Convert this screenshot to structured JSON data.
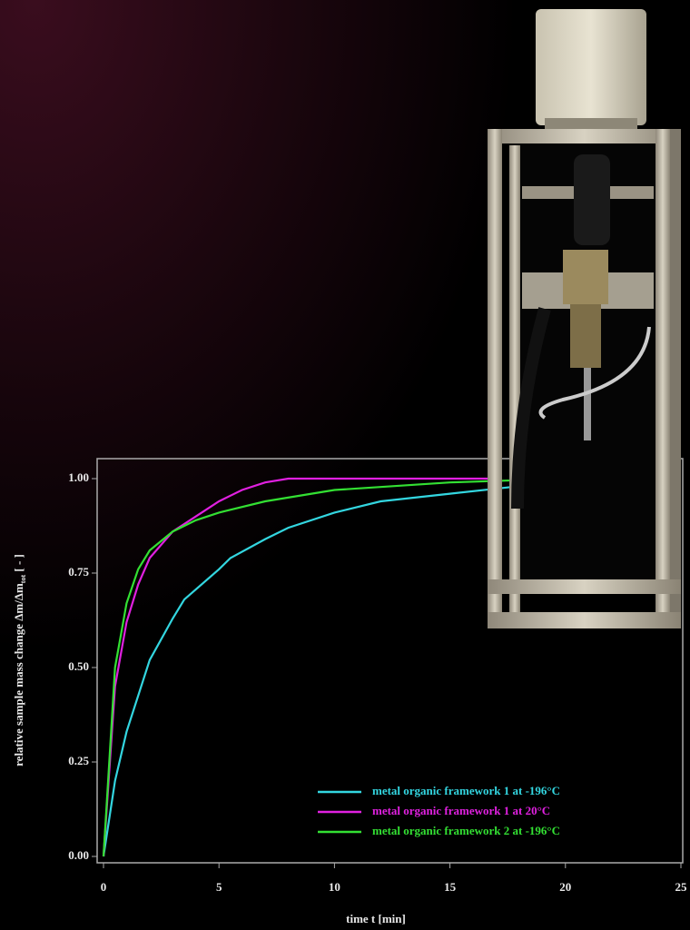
{
  "chart_data": {
    "type": "line",
    "x_label": "time t [min]",
    "y_label": {
      "text": "relative sample mass change Δm/Δm",
      "subscript": "tot",
      "suffix": " [ - ]"
    },
    "xlim": [
      0,
      25
    ],
    "xticks": [
      0,
      5,
      10,
      15,
      20,
      25
    ],
    "ylim": [
      0,
      1.05
    ],
    "yticks": [
      {
        "value": 0,
        "label": "0.00"
      },
      {
        "value": 0.25,
        "label": "0.25"
      },
      {
        "value": 0.5,
        "label": "0.50"
      },
      {
        "value": 0.75,
        "label": "0.75"
      },
      {
        "value": 1,
        "label": "1.00"
      }
    ],
    "legend": "lower right",
    "series": [
      {
        "name": "metal organic framework 1 at -196°C",
        "color": "#33d6e0",
        "x": [
          0,
          0.5,
          1,
          2,
          3,
          3.5,
          5,
          5.5,
          7,
          8,
          10,
          12,
          15,
          18,
          20,
          24
        ],
        "values": [
          0,
          0.2,
          0.33,
          0.52,
          0.63,
          0.68,
          0.76,
          0.79,
          0.84,
          0.87,
          0.91,
          0.94,
          0.96,
          0.98,
          0.99,
          1.0
        ]
      },
      {
        "name": "metal organic framework 1 at 20°C",
        "color": "#e020e0",
        "x": [
          0,
          0.5,
          1,
          1.5,
          2,
          3,
          4,
          5,
          6,
          7,
          8,
          10,
          15,
          17
        ],
        "values": [
          0,
          0.45,
          0.62,
          0.72,
          0.79,
          0.86,
          0.9,
          0.94,
          0.97,
          0.99,
          1.0,
          1.0,
          1.0,
          1.0
        ]
      },
      {
        "name": "metal organic framework 2 at -196°C",
        "color": "#33e033",
        "x": [
          0,
          0.5,
          1,
          1.5,
          2,
          3,
          4,
          5,
          7,
          10,
          15,
          20,
          24
        ],
        "values": [
          0,
          0.5,
          0.67,
          0.76,
          0.81,
          0.86,
          0.89,
          0.91,
          0.94,
          0.97,
          0.99,
          1.0,
          1.0
        ]
      }
    ]
  }
}
